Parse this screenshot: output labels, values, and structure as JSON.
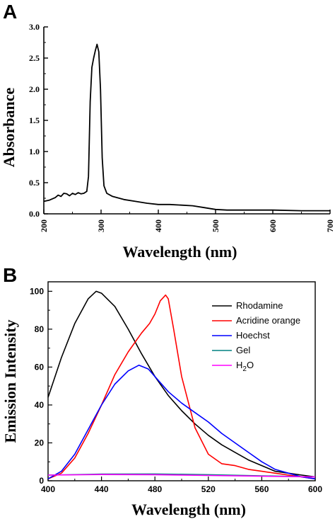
{
  "chart_data": [
    {
      "panel": "A",
      "type": "line",
      "xlabel": "Wavelength (nm)",
      "ylabel": "Absorbance",
      "xlim": [
        200,
        700
      ],
      "ylim": [
        0,
        3.0
      ],
      "xticks": [
        "200",
        "300",
        "400",
        "500",
        "600",
        "700"
      ],
      "yticks": [
        "0.0",
        "0.5",
        "1.0",
        "1.5",
        "2.0",
        "2.5",
        "3.0"
      ],
      "grid": false,
      "series": [
        {
          "color": "#000000",
          "x": [
            200,
            210,
            220,
            225,
            230,
            235,
            240,
            245,
            250,
            255,
            260,
            265,
            270,
            275,
            278,
            281,
            284,
            287,
            290,
            293,
            296,
            299,
            302,
            305,
            310,
            320,
            340,
            360,
            380,
            400,
            420,
            440,
            460,
            480,
            500,
            520,
            560,
            600,
            650,
            700
          ],
          "y": [
            0.2,
            0.22,
            0.26,
            0.3,
            0.28,
            0.33,
            0.32,
            0.29,
            0.33,
            0.31,
            0.34,
            0.32,
            0.33,
            0.36,
            0.6,
            1.8,
            2.35,
            2.5,
            2.62,
            2.72,
            2.6,
            2.0,
            0.9,
            0.45,
            0.33,
            0.28,
            0.23,
            0.2,
            0.17,
            0.15,
            0.15,
            0.14,
            0.13,
            0.1,
            0.07,
            0.06,
            0.06,
            0.06,
            0.05,
            0.05
          ]
        }
      ]
    },
    {
      "panel": "B",
      "type": "line",
      "xlabel": "Wavelength (nm)",
      "ylabel": "Emission Intensity",
      "xlim": [
        400,
        600
      ],
      "ylim": [
        0,
        105
      ],
      "xticks": [
        "400",
        "440",
        "480",
        "520",
        "560",
        "600"
      ],
      "yticks": [
        "0",
        "20",
        "40",
        "60",
        "80",
        "100"
      ],
      "grid": false,
      "legend_position": "top-right",
      "series": [
        {
          "name": "Rhodamine",
          "color": "#000000",
          "x": [
            400,
            410,
            420,
            430,
            436,
            440,
            450,
            460,
            470,
            480,
            490,
            500,
            510,
            520,
            530,
            540,
            550,
            560,
            570,
            580,
            590,
            600
          ],
          "y": [
            44,
            65,
            83,
            96,
            100,
            99,
            92,
            80,
            67,
            55,
            45,
            37,
            30,
            24,
            19,
            15,
            11,
            8,
            5,
            4,
            3,
            2
          ]
        },
        {
          "name": "Acridine orange",
          "color": "#ff0000",
          "x": [
            400,
            410,
            420,
            430,
            440,
            450,
            460,
            470,
            476,
            480,
            484,
            488,
            490,
            494,
            500,
            510,
            520,
            530,
            540,
            550,
            560,
            570,
            580,
            590,
            600
          ],
          "y": [
            1,
            4,
            12,
            25,
            40,
            56,
            68,
            78,
            83,
            88,
            95,
            98,
            96,
            80,
            55,
            28,
            14,
            9,
            8,
            6,
            5,
            4,
            3,
            2,
            1
          ]
        },
        {
          "name": "Hoechst",
          "color": "#0000ff",
          "x": [
            400,
            410,
            420,
            430,
            440,
            450,
            460,
            468,
            475,
            480,
            490,
            500,
            510,
            520,
            530,
            540,
            550,
            560,
            570,
            580,
            590,
            600
          ],
          "y": [
            1,
            5,
            14,
            27,
            40,
            51,
            58,
            61,
            59,
            55,
            47,
            41,
            36,
            31,
            25,
            20,
            15,
            10,
            6,
            4,
            2,
            1
          ]
        },
        {
          "name": "Gel",
          "color": "#008080",
          "x": [
            400,
            440,
            480,
            520,
            560,
            600
          ],
          "y": [
            3,
            3.5,
            3.6,
            3.2,
            2.6,
            2
          ]
        },
        {
          "name": "H2O",
          "color": "#ff00ff",
          "x": [
            400,
            440,
            480,
            520,
            560,
            600
          ],
          "y": [
            3,
            3.3,
            3.2,
            2.8,
            2.4,
            2
          ]
        }
      ]
    }
  ]
}
